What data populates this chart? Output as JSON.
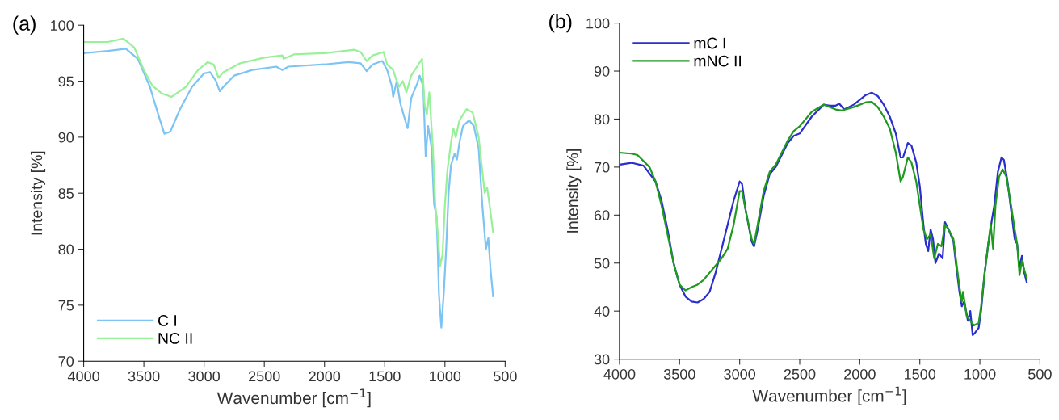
{
  "chart_data": [
    {
      "type": "line",
      "title": "(a)",
      "xlabel": "Wavenumber [cm$^{−1}$]",
      "ylabel": "Intensity [%]",
      "xlim": [
        4000,
        500
      ],
      "ylim": [
        70,
        100
      ],
      "xticks": [
        4000,
        3500,
        3000,
        2500,
        2000,
        1500,
        1000,
        500
      ],
      "yticks": [
        70,
        75,
        80,
        85,
        90,
        95,
        100
      ],
      "grid": false,
      "legend": "bottom left",
      "line_style": "solid",
      "marker": "none",
      "series": [
        {
          "name": "C I",
          "color": "#7cc4f4",
          "x": [
            4000,
            3800,
            3650,
            3550,
            3450,
            3380,
            3330,
            3280,
            3200,
            3100,
            3000,
            2950,
            2900,
            2870,
            2840,
            2750,
            2600,
            2400,
            2350,
            2300,
            2000,
            1800,
            1700,
            1650,
            1600,
            1520,
            1480,
            1440,
            1430,
            1400,
            1370,
            1330,
            1310,
            1280,
            1230,
            1210,
            1180,
            1160,
            1140,
            1110,
            1090,
            1070,
            1060,
            1050,
            1040,
            1030,
            1010,
            990,
            970,
            950,
            920,
            900,
            880,
            850,
            800,
            760,
            720,
            690,
            660,
            640,
            620,
            600
          ],
          "values": [
            97.5,
            97.7,
            97.9,
            97.0,
            94.5,
            92.0,
            90.3,
            90.5,
            92.5,
            94.5,
            95.7,
            95.8,
            95.0,
            94.1,
            94.5,
            95.5,
            96.0,
            96.3,
            96.0,
            96.3,
            96.5,
            96.7,
            96.6,
            95.9,
            96.5,
            96.8,
            96.0,
            94.5,
            93.6,
            95.0,
            93.0,
            91.5,
            90.8,
            93.5,
            94.8,
            95.5,
            94.5,
            88.3,
            91.0,
            89.0,
            84.0,
            83.0,
            80.0,
            76.0,
            74.5,
            73.0,
            76.0,
            80.0,
            85.0,
            87.5,
            88.5,
            88.0,
            89.5,
            91.0,
            91.5,
            91.0,
            89.0,
            84.0,
            80.0,
            81.0,
            78.0,
            75.8
          ]
        },
        {
          "name": "NC II",
          "color": "#98f098",
          "x": [
            4000,
            3800,
            3670,
            3580,
            3500,
            3430,
            3350,
            3270,
            3150,
            3050,
            2970,
            2920,
            2880,
            2840,
            2700,
            2500,
            2350,
            2340,
            2250,
            2000,
            1750,
            1700,
            1650,
            1600,
            1510,
            1480,
            1430,
            1400,
            1380,
            1350,
            1320,
            1280,
            1220,
            1190,
            1170,
            1150,
            1130,
            1100,
            1080,
            1060,
            1040,
            1020,
            1000,
            980,
            950,
            930,
            910,
            880,
            820,
            770,
            720,
            700,
            670,
            650,
            630,
            600
          ],
          "values": [
            98.5,
            98.5,
            98.8,
            98.0,
            96.0,
            94.6,
            93.9,
            93.6,
            94.5,
            96.0,
            96.7,
            96.5,
            95.3,
            95.8,
            96.6,
            97.1,
            97.3,
            97.0,
            97.4,
            97.5,
            97.8,
            97.6,
            96.8,
            97.3,
            97.6,
            96.5,
            96.0,
            95.0,
            94.5,
            95.0,
            94.0,
            95.5,
            96.5,
            97.0,
            93.0,
            92.0,
            94.0,
            89.0,
            84.0,
            81.5,
            78.5,
            79.5,
            84.0,
            87.0,
            89.5,
            90.8,
            90.0,
            91.5,
            92.5,
            92.2,
            90.0,
            88.0,
            85.0,
            85.5,
            84.0,
            81.5
          ]
        }
      ]
    },
    {
      "type": "line",
      "title": "(b)",
      "xlabel": "Wavenumber [cm$^{−1}$]",
      "ylabel": "Intensity [%]",
      "xlim": [
        4000,
        500
      ],
      "ylim": [
        30,
        100
      ],
      "xticks": [
        4000,
        3500,
        3000,
        2500,
        2000,
        1500,
        1000,
        500
      ],
      "yticks": [
        30,
        40,
        50,
        60,
        70,
        80,
        90,
        100
      ],
      "grid": false,
      "legend": "top left",
      "line_style": "solid",
      "marker": "none",
      "series": [
        {
          "name": "mC I",
          "color": "#2a2ecc",
          "x": [
            4000,
            3900,
            3800,
            3700,
            3650,
            3600,
            3550,
            3500,
            3450,
            3400,
            3350,
            3300,
            3250,
            3200,
            3150,
            3100,
            3050,
            3000,
            2980,
            2950,
            2900,
            2880,
            2850,
            2800,
            2750,
            2700,
            2600,
            2550,
            2500,
            2400,
            2300,
            2250,
            2200,
            2170,
            2130,
            2050,
            2000,
            1950,
            1900,
            1850,
            1800,
            1750,
            1700,
            1660,
            1640,
            1600,
            1570,
            1530,
            1500,
            1470,
            1450,
            1430,
            1410,
            1390,
            1370,
            1340,
            1310,
            1290,
            1260,
            1220,
            1200,
            1170,
            1150,
            1130,
            1100,
            1080,
            1060,
            1040,
            1010,
            990,
            960,
            930,
            900,
            880,
            850,
            820,
            800,
            770,
            740,
            710,
            690,
            670,
            650,
            630,
            610
          ],
          "values": [
            70.5,
            70.9,
            70.3,
            67.0,
            63.0,
            57.0,
            50.0,
            45.5,
            43.0,
            42.0,
            41.8,
            42.5,
            44.0,
            48.0,
            53.0,
            58.0,
            63.0,
            67.0,
            66.5,
            61.0,
            54.5,
            53.5,
            57.0,
            64.0,
            68.5,
            70.0,
            75.0,
            76.5,
            77.0,
            80.5,
            83.0,
            82.8,
            82.8,
            83.2,
            82.0,
            83.0,
            84.0,
            85.0,
            85.5,
            84.8,
            83.0,
            80.5,
            77.0,
            72.0,
            72.0,
            75.0,
            74.5,
            71.0,
            66.0,
            58.0,
            54.0,
            52.5,
            57.0,
            55.0,
            50.0,
            52.0,
            51.0,
            58.5,
            57.0,
            54.5,
            50.0,
            44.0,
            41.0,
            42.0,
            38.0,
            40.0,
            35.0,
            35.5,
            36.5,
            40.0,
            48.0,
            54.0,
            59.0,
            62.0,
            69.0,
            72.0,
            71.5,
            67.0,
            61.0,
            55.0,
            54.0,
            49.0,
            51.5,
            48.0,
            46.0
          ]
        },
        {
          "name": "mNC II",
          "color": "#1e9a1e",
          "x": [
            4000,
            3900,
            3850,
            3750,
            3700,
            3650,
            3600,
            3550,
            3500,
            3450,
            3400,
            3350,
            3300,
            3250,
            3200,
            3150,
            3100,
            3050,
            3000,
            2980,
            2950,
            2900,
            2880,
            2850,
            2800,
            2750,
            2700,
            2600,
            2550,
            2500,
            2400,
            2300,
            2200,
            2150,
            2050,
            1950,
            1900,
            1850,
            1800,
            1750,
            1700,
            1660,
            1640,
            1600,
            1570,
            1530,
            1500,
            1470,
            1440,
            1410,
            1380,
            1350,
            1320,
            1290,
            1260,
            1220,
            1200,
            1170,
            1150,
            1140,
            1110,
            1080,
            1050,
            1010,
            990,
            960,
            930,
            910,
            890,
            870,
            840,
            810,
            780,
            740,
            710,
            690,
            670,
            650,
            630,
            610
          ],
          "values": [
            73.0,
            72.8,
            72.5,
            70.0,
            67.0,
            62.0,
            56.0,
            50.0,
            45.5,
            44.3,
            45.0,
            45.5,
            46.5,
            48.0,
            49.5,
            51.0,
            53.0,
            58.0,
            65.0,
            65.0,
            61.0,
            55.0,
            54.0,
            58.0,
            65.0,
            69.0,
            70.5,
            75.5,
            77.5,
            78.5,
            81.5,
            83.0,
            82.0,
            81.8,
            82.5,
            83.5,
            83.6,
            82.5,
            80.5,
            78.0,
            73.0,
            67.0,
            68.0,
            72.0,
            71.0,
            67.0,
            62.0,
            57.0,
            55.0,
            56.0,
            51.0,
            54.0,
            53.5,
            58.0,
            57.0,
            55.0,
            51.0,
            45.0,
            42.0,
            44.0,
            39.0,
            38.0,
            37.0,
            37.5,
            41.0,
            48.0,
            54.0,
            58.0,
            53.0,
            62.0,
            68.0,
            69.5,
            68.0,
            62.0,
            57.0,
            54.0,
            47.5,
            50.5,
            48.5,
            47.0
          ]
        }
      ]
    }
  ]
}
